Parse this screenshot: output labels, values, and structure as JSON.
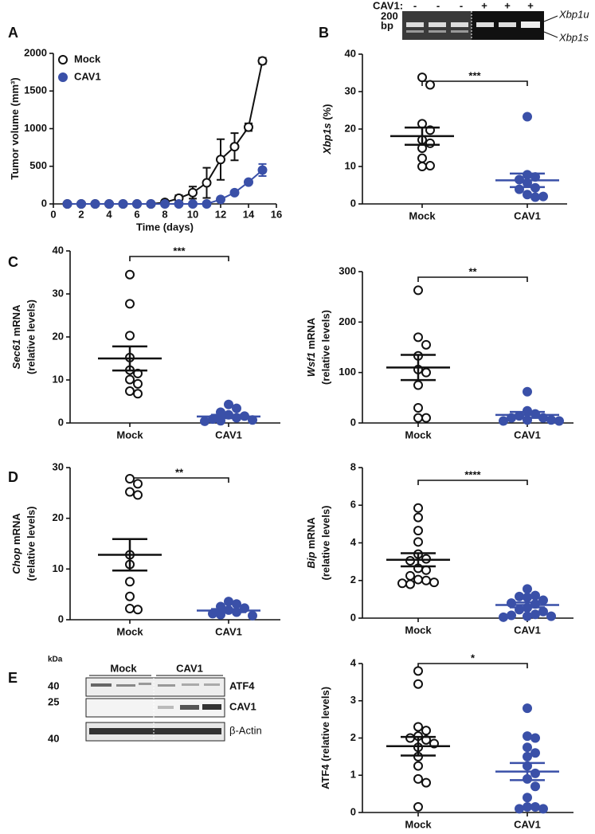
{
  "chart_data": [
    {
      "type": "line",
      "panel": "A",
      "xlabel": "Time (days)",
      "ylabel": "Tumor volume (mm³)",
      "x": [
        1,
        2,
        3,
        4,
        5,
        6,
        7,
        8,
        9,
        10,
        11,
        12,
        13,
        14,
        15
      ],
      "xlim": [
        0,
        16
      ],
      "xticks": [
        0,
        2,
        4,
        6,
        8,
        10,
        12,
        14,
        16
      ],
      "ylim": [
        0,
        2000
      ],
      "yticks": [
        0,
        500,
        1000,
        1500,
        2000
      ],
      "series": [
        {
          "name": "Mock",
          "color": "#111111",
          "filled": false,
          "values": [
            0,
            0,
            0,
            0,
            0,
            0,
            0,
            20,
            75,
            150,
            280,
            590,
            760,
            1020,
            1900
          ],
          "errors": [
            0,
            0,
            0,
            0,
            0,
            0,
            0,
            0,
            40,
            80,
            200,
            270,
            180,
            50,
            40
          ]
        },
        {
          "name": "CAV1",
          "color": "#3a50a8",
          "filled": true,
          "values": [
            0,
            0,
            0,
            0,
            0,
            0,
            0,
            0,
            0,
            0,
            0,
            60,
            150,
            290,
            450
          ],
          "errors": [
            0,
            0,
            0,
            0,
            0,
            0,
            0,
            0,
            0,
            0,
            0,
            0,
            0,
            0,
            80
          ]
        }
      ]
    },
    {
      "type": "dot",
      "panel": "B",
      "ylabel_italic": "Xbp1s",
      "ylabel": " (%)",
      "significance": "***",
      "categories": [
        "Mock",
        "CAV1"
      ],
      "ylim": [
        0,
        40
      ],
      "yticks": [
        0,
        10,
        20,
        30,
        40
      ],
      "groups": [
        {
          "color": "#111111",
          "filled": false,
          "values": [
            33.8,
            31.8,
            21.4,
            19.7,
            17.1,
            16.2,
            14.9,
            12.2,
            10.2,
            10.0
          ],
          "mean": 18.1,
          "sem": 2.3
        },
        {
          "color": "#3a50a8",
          "filled": true,
          "values": [
            23.3,
            7.8,
            7.2,
            6.5,
            5.6,
            4.3,
            3.9,
            2.5,
            1.8,
            2.0
          ],
          "mean": 6.3,
          "sem": 1.8
        }
      ]
    },
    {
      "type": "dot",
      "panel": "C",
      "ylabel_italic": "Sec61",
      "ylabel": " mRNA",
      "ylabel2": "(relative levels)",
      "significance": "***",
      "categories": [
        "Mock",
        "CAV1"
      ],
      "ylim": [
        0,
        40
      ],
      "yticks": [
        0,
        10,
        20,
        30,
        40
      ],
      "groups": [
        {
          "color": "#111111",
          "filled": false,
          "values": [
            34.5,
            27.7,
            20.3,
            15.2,
            12.3,
            11.5,
            10.1,
            9.1,
            7.4,
            6.8
          ],
          "mean": 15,
          "sem": 2.8
        },
        {
          "color": "#3a50a8",
          "filled": true,
          "values": [
            4.3,
            3.4,
            2.5,
            1.9,
            1.6,
            1.2,
            0.9,
            0.7,
            0.5,
            0.4
          ],
          "mean": 1.5,
          "sem": 0.4
        }
      ]
    },
    {
      "type": "dot",
      "ylabel_italic": "Wsf1",
      "ylabel": " mRNA",
      "ylabel2": "(relative levels)",
      "significance": "**",
      "categories": [
        "Mock",
        "CAV1"
      ],
      "ylim": [
        0,
        300
      ],
      "yticks": [
        0,
        100,
        200,
        300
      ],
      "groups": [
        {
          "color": "#111111",
          "filled": false,
          "values": [
            263,
            170,
            155,
            133,
            106,
            100,
            75,
            30,
            10,
            10
          ],
          "mean": 110,
          "sem": 25
        },
        {
          "color": "#3a50a8",
          "filled": true,
          "values": [
            62,
            24,
            18,
            14,
            10,
            10,
            6,
            6,
            4,
            4
          ],
          "mean": 16,
          "sem": 6
        }
      ]
    },
    {
      "type": "dot",
      "panel": "D",
      "ylabel_italic": "Chop",
      "ylabel": " mRNA",
      "ylabel2": "(relative levels)",
      "significance": "**",
      "categories": [
        "Mock",
        "CAV1"
      ],
      "ylim": [
        0,
        30
      ],
      "yticks": [
        0,
        10,
        20,
        30
      ],
      "groups": [
        {
          "color": "#111111",
          "filled": false,
          "values": [
            27.8,
            26.8,
            25.2,
            24.6,
            12.8,
            10.9,
            7.5,
            4.6,
            2.2,
            2.0
          ],
          "mean": 12.8,
          "sem": 3.1
        },
        {
          "color": "#3a50a8",
          "filled": true,
          "values": [
            3.6,
            3.1,
            2.6,
            2.3,
            1.9,
            1.5,
            1.2,
            1.0,
            0.8
          ],
          "mean": 1.8,
          "sem": 0.3
        }
      ]
    },
    {
      "type": "dot",
      "ylabel_italic": "Bip",
      "ylabel": " mRNA",
      "ylabel2": "(relative levels)",
      "significance": "****",
      "categories": [
        "Mock",
        "CAV1"
      ],
      "ylim": [
        0,
        8
      ],
      "yticks": [
        0,
        2,
        4,
        6,
        8
      ],
      "groups": [
        {
          "color": "#111111",
          "filled": false,
          "values": [
            5.85,
            5.35,
            4.65,
            4.05,
            3.4,
            3.15,
            3.05,
            2.65,
            2.55,
            2.25,
            2.05,
            2.0,
            1.9,
            1.85,
            1.8
          ],
          "mean": 3.1,
          "sem": 0.35
        },
        {
          "color": "#3a50a8",
          "filled": true,
          "values": [
            1.55,
            1.2,
            1.15,
            1.1,
            0.95,
            0.8,
            0.75,
            0.55,
            0.45,
            0.35,
            0.2,
            0.15,
            0.1,
            0.1,
            0.05
          ],
          "mean": 0.7,
          "sem": 0.13
        }
      ]
    },
    {
      "type": "dot",
      "ylabel": "ATF4 (relative levels)",
      "significance": "*",
      "categories": [
        "Mock",
        "CAV1"
      ],
      "ylim": [
        0,
        4
      ],
      "yticks": [
        0,
        1,
        2,
        3,
        4
      ],
      "groups": [
        {
          "color": "#111111",
          "filled": false,
          "values": [
            3.8,
            3.45,
            2.3,
            2.2,
            2.05,
            2.0,
            1.95,
            1.85,
            1.75,
            1.5,
            1.25,
            0.9,
            0.8,
            0.15
          ],
          "mean": 1.78,
          "sem": 0.25
        },
        {
          "color": "#3a50a8",
          "filled": true,
          "values": [
            2.8,
            2.05,
            2.0,
            1.75,
            1.6,
            1.5,
            1.25,
            1.05,
            0.9,
            0.7,
            0.4,
            0.15,
            0.15,
            0.1,
            0.1
          ],
          "mean": 1.1,
          "sem": 0.23
        }
      ]
    }
  ],
  "gel": {
    "label": "CAV1:",
    "lanes": [
      "-",
      "-",
      "-",
      "+",
      "+",
      "+"
    ],
    "size": "200",
    "unit": "bp",
    "upper": "Xbp1u",
    "lower": "Xbp1s"
  },
  "blot": {
    "panel": "E",
    "unit": "kDa",
    "groups": [
      "Mock",
      "CAV1"
    ],
    "rows": [
      {
        "marker": "40",
        "label": "ATF4"
      },
      {
        "marker": "25",
        "label": "CAV1"
      },
      {
        "marker": "40",
        "label": "β-Actin"
      }
    ]
  }
}
